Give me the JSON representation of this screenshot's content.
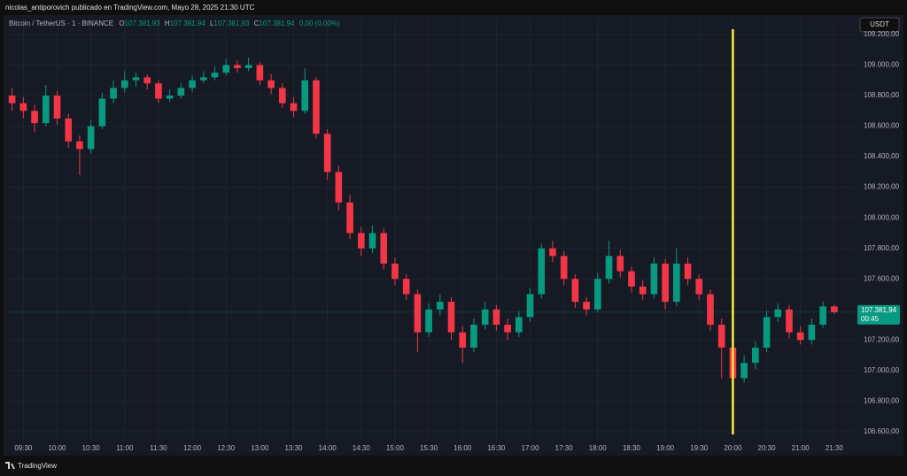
{
  "header": {
    "text": "nicolas_antiporovich publicado en TradingView.com, Mayo 28, 2025 21:30 UTC"
  },
  "footer": {
    "brand": "TradingView"
  },
  "legend": {
    "symbol": "Bitcoin / TetherUS · 1 · BINANCE",
    "ohlc": [
      {
        "key": "O",
        "value": "107.381,93"
      },
      {
        "key": "H",
        "value": "107.381,94"
      },
      {
        "key": "L",
        "value": "107.381,93"
      },
      {
        "key": "C",
        "value": "107.381,94"
      }
    ],
    "change": "0,00 (0,00%)"
  },
  "currency": "USDT",
  "chart_data": {
    "type": "candlestick",
    "up_color": "#089981",
    "down_color": "#f23645",
    "grid": true,
    "xlim": [
      554,
      1309
    ],
    "ylim": [
      106460,
      109310
    ],
    "xticks": [
      {
        "value": 570,
        "label": "09:30"
      },
      {
        "value": 600,
        "label": "10:00"
      },
      {
        "value": 630,
        "label": "10:30"
      },
      {
        "value": 660,
        "label": "11:00"
      },
      {
        "value": 690,
        "label": "11:30"
      },
      {
        "value": 720,
        "label": "12:00"
      },
      {
        "value": 750,
        "label": "12:30"
      },
      {
        "value": 780,
        "label": "13:00"
      },
      {
        "value": 810,
        "label": "13:30"
      },
      {
        "value": 840,
        "label": "14:00"
      },
      {
        "value": 870,
        "label": "14:30"
      },
      {
        "value": 900,
        "label": "15:00"
      },
      {
        "value": 930,
        "label": "15:30"
      },
      {
        "value": 960,
        "label": "16:00"
      },
      {
        "value": 990,
        "label": "16:30"
      },
      {
        "value": 1020,
        "label": "17:00"
      },
      {
        "value": 1050,
        "label": "17:30"
      },
      {
        "value": 1080,
        "label": "18:00"
      },
      {
        "value": 1110,
        "label": "18:30"
      },
      {
        "value": 1140,
        "label": "19:00"
      },
      {
        "value": 1170,
        "label": "19:30"
      },
      {
        "value": 1200,
        "label": "20:00"
      },
      {
        "value": 1230,
        "label": "20:30"
      },
      {
        "value": 1260,
        "label": "21:00"
      },
      {
        "value": 1290,
        "label": "21:30"
      }
    ],
    "yticks": [
      {
        "value": 106600,
        "label": "106.600,00"
      },
      {
        "value": 106800,
        "label": "106.800,00"
      },
      {
        "value": 107000,
        "label": "107.000,00"
      },
      {
        "value": 107200,
        "label": "107.200,00"
      },
      {
        "value": 107600,
        "label": "107.600,00"
      },
      {
        "value": 107800,
        "label": "107.800,00"
      },
      {
        "value": 108000,
        "label": "108.000,00"
      },
      {
        "value": 108200,
        "label": "108.200,00"
      },
      {
        "value": 108400,
        "label": "108.400,00"
      },
      {
        "value": 108600,
        "label": "108.600,00"
      },
      {
        "value": 108800,
        "label": "108.800,00"
      },
      {
        "value": 109000,
        "label": "109.000,00"
      },
      {
        "value": 109200,
        "label": "109.200,00"
      }
    ],
    "x": [
      560,
      570,
      580,
      590,
      600,
      610,
      620,
      630,
      640,
      650,
      660,
      670,
      680,
      690,
      700,
      710,
      720,
      730,
      740,
      750,
      760,
      770,
      780,
      790,
      800,
      810,
      820,
      830,
      840,
      850,
      860,
      870,
      880,
      890,
      900,
      910,
      920,
      930,
      940,
      950,
      960,
      970,
      980,
      990,
      1000,
      1010,
      1020,
      1030,
      1040,
      1050,
      1060,
      1070,
      1080,
      1090,
      1100,
      1110,
      1120,
      1130,
      1140,
      1150,
      1160,
      1170,
      1180,
      1190,
      1200,
      1210,
      1220,
      1230,
      1240,
      1250,
      1260,
      1270,
      1280,
      1290
    ],
    "open": [
      108800,
      108750,
      108700,
      108620,
      108800,
      108650,
      108500,
      108450,
      108600,
      108780,
      108850,
      108900,
      108920,
      108880,
      108780,
      108800,
      108850,
      108900,
      108920,
      108950,
      109000,
      108980,
      109000,
      108900,
      108850,
      108750,
      108700,
      108900,
      108550,
      108300,
      108100,
      107900,
      107800,
      107900,
      107700,
      107600,
      107500,
      107250,
      107400,
      107450,
      107250,
      107150,
      107300,
      107400,
      107300,
      107250,
      107350,
      107500,
      107800,
      107750,
      107600,
      107450,
      107400,
      107600,
      107750,
      107650,
      107550,
      107500,
      107700,
      107450,
      107700,
      107600,
      107500,
      107300,
      107150,
      106950,
      107050,
      107150,
      107350,
      107400,
      107250,
      107200,
      107300,
      107420
    ],
    "high": [
      108850,
      108790,
      108740,
      108870,
      108830,
      108680,
      108540,
      108640,
      108820,
      108900,
      108960,
      108950,
      108940,
      108900,
      108840,
      108880,
      108930,
      108960,
      108990,
      109040,
      109030,
      109050,
      109020,
      108940,
      108880,
      108790,
      108980,
      108920,
      108580,
      108340,
      108150,
      107940,
      107950,
      107930,
      107740,
      107630,
      107530,
      107440,
      107500,
      107480,
      107290,
      107340,
      107450,
      107430,
      107340,
      107390,
      107540,
      107830,
      107850,
      107780,
      107630,
      107480,
      107640,
      107850,
      107790,
      107680,
      107590,
      107740,
      107730,
      107800,
      107740,
      107630,
      107530,
      107340,
      107180,
      107100,
      107190,
      107390,
      107440,
      107430,
      107290,
      107340,
      107450,
      107430
    ],
    "low": [
      108700,
      108650,
      108560,
      108600,
      108610,
      108460,
      108280,
      108420,
      108580,
      108750,
      108820,
      108860,
      108840,
      108750,
      108760,
      108780,
      108820,
      108880,
      108900,
      108930,
      108950,
      108960,
      108870,
      108810,
      108720,
      108660,
      108680,
      108520,
      108250,
      108050,
      107860,
      107750,
      107770,
      107660,
      107560,
      107460,
      107120,
      107220,
      107360,
      107200,
      107050,
      107120,
      107270,
      107260,
      107200,
      107220,
      107320,
      107470,
      107710,
      107560,
      107410,
      107360,
      107380,
      107570,
      107610,
      107510,
      107460,
      107470,
      107400,
      107420,
      107560,
      107460,
      107260,
      106950,
      106780,
      106920,
      107010,
      107120,
      107320,
      107210,
      107170,
      107170,
      107280,
      107370
    ],
    "close": [
      108750,
      108700,
      108620,
      108800,
      108650,
      108500,
      108450,
      108600,
      108780,
      108850,
      108900,
      108920,
      108880,
      108780,
      108800,
      108850,
      108900,
      108920,
      108950,
      109000,
      108980,
      109000,
      108900,
      108850,
      108750,
      108700,
      108900,
      108550,
      108300,
      108100,
      107900,
      107800,
      107900,
      107700,
      107600,
      107500,
      107250,
      107400,
      107450,
      107250,
      107150,
      107300,
      107400,
      107300,
      107250,
      107350,
      107500,
      107800,
      107750,
      107600,
      107450,
      107400,
      107600,
      107750,
      107650,
      107550,
      107500,
      107700,
      107450,
      107700,
      107600,
      107500,
      107300,
      107150,
      106950,
      107050,
      107150,
      107350,
      107400,
      107250,
      107200,
      107300,
      107420,
      107381.94
    ],
    "last_price": {
      "value": 107381.94,
      "label": "107.381,94",
      "countdown": "00:45",
      "color": "#089981"
    },
    "vertical_line": {
      "x": 1200,
      "color": "#ffeb3b"
    }
  }
}
